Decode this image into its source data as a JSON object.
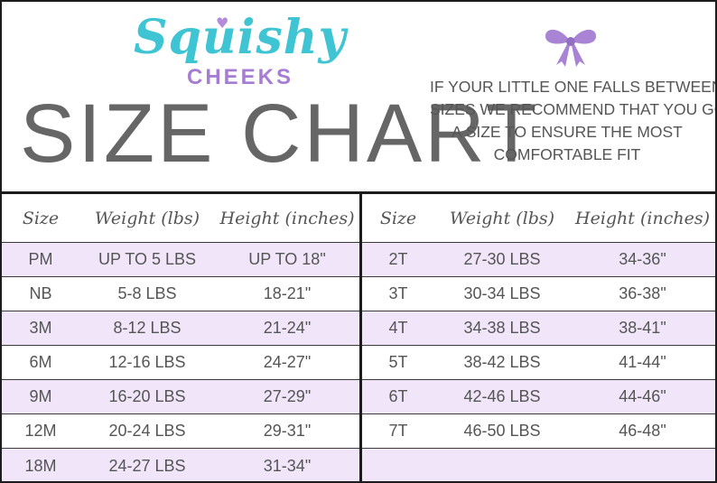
{
  "brand": {
    "name": "Squishy",
    "sub": "CHEEKS",
    "heart_icon": "heart-icon",
    "primary_color": "#3fc4d3",
    "accent_color": "#a77cd3"
  },
  "title": "SIZE CHART",
  "note_lines": [
    "IF YOUR LITTLE ONE FALLS BETWEEN",
    "SIZES WE RECOMMEND THAT YOU GO UP",
    "A SIZE TO ENSURE THE MOST",
    "COMFORTABLE FIT"
  ],
  "bow_icon": "bow-icon",
  "row_highlight_color": "#f1e5f9",
  "headers": {
    "size": "Size",
    "weight": "Weight (lbs)",
    "height": "Height (inches)"
  },
  "left_rows": [
    {
      "size": "PM",
      "weight": "UP TO 5 LBS",
      "height": "UP TO 18\""
    },
    {
      "size": "NB",
      "weight": "5-8 LBS",
      "height": "18-21\""
    },
    {
      "size": "3M",
      "weight": "8-12 LBS",
      "height": "21-24\""
    },
    {
      "size": "6M",
      "weight": "12-16 LBS",
      "height": "24-27\""
    },
    {
      "size": "9M",
      "weight": "16-20 LBS",
      "height": "27-29\""
    },
    {
      "size": "12M",
      "weight": "20-24 LBS",
      "height": "29-31\""
    },
    {
      "size": "18M",
      "weight": "24-27 LBS",
      "height": "31-34\""
    }
  ],
  "right_rows": [
    {
      "size": "2T",
      "weight": "27-30 LBS",
      "height": "34-36\""
    },
    {
      "size": "3T",
      "weight": "30-34 LBS",
      "height": "36-38\""
    },
    {
      "size": "4T",
      "weight": "34-38 LBS",
      "height": "38-41\""
    },
    {
      "size": "5T",
      "weight": "38-42 LBS",
      "height": "41-44\""
    },
    {
      "size": "6T",
      "weight": "42-46 LBS",
      "height": "44-46\""
    },
    {
      "size": "7T",
      "weight": "46-50 LBS",
      "height": "46-48\""
    },
    {
      "size": "",
      "weight": "",
      "height": ""
    }
  ]
}
